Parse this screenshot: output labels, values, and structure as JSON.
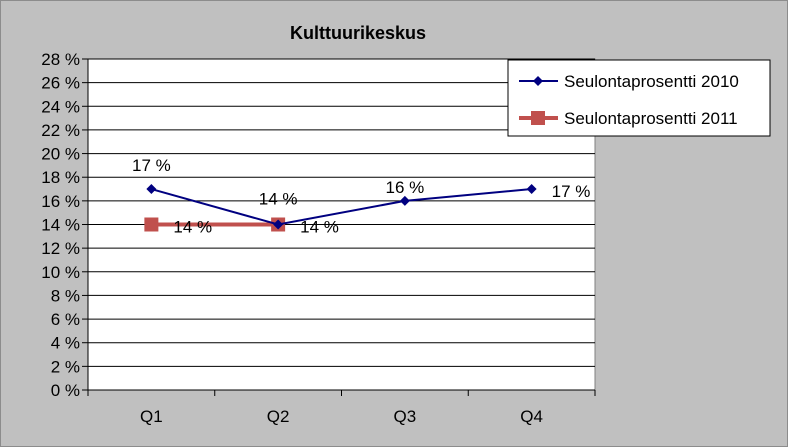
{
  "chart_data": {
    "type": "line",
    "title": "Kulttuurikeskus",
    "categories": [
      "Q1",
      "Q2",
      "Q3",
      "Q4"
    ],
    "ylim": [
      0,
      28
    ],
    "ytick_step": 2,
    "ytick_suffix": " %",
    "grid": true,
    "legend_position": "top-right",
    "series": [
      {
        "name": "Seulontaprosentti 2010",
        "values": [
          17,
          14,
          16,
          17
        ],
        "data_labels": [
          "17 %",
          "14 %",
          "16 %",
          "17 %"
        ],
        "color": "#000080",
        "marker": "diamond"
      },
      {
        "name": "Seulontaprosentti 2011",
        "values": [
          14,
          14,
          null,
          null
        ],
        "data_labels": [
          "14 %",
          "14 %",
          null,
          null
        ],
        "color": "#c0504d",
        "marker": "square"
      }
    ]
  },
  "colors": {
    "chart_background": "#c0c0c0",
    "plot_background": "#ffffff",
    "gridline": "#000000"
  }
}
